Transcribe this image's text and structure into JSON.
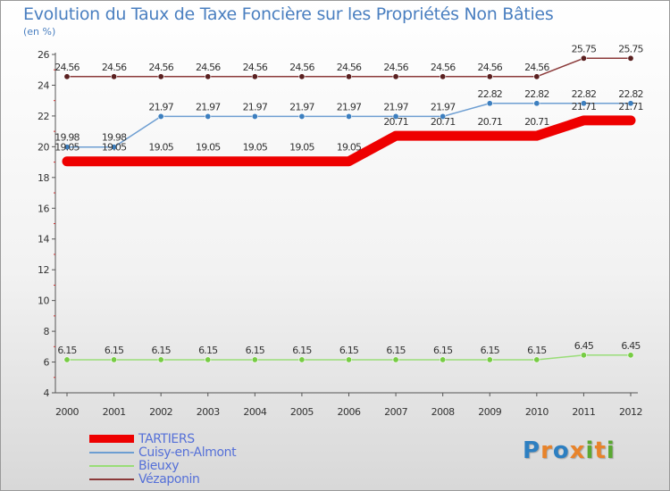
{
  "header": {
    "title": "Evolution du Taux de Taxe Foncière sur les Propriétés Non Bâties",
    "unit": "(en %)"
  },
  "logo": {
    "text": "Proxiti",
    "letters": [
      "P",
      "r",
      "o",
      "x",
      "i",
      "t",
      "i"
    ],
    "colors": [
      "#2d7fc1",
      "#e8832a",
      "#2d7fc1",
      "#e8832a",
      "#5aa832",
      "#e8832a",
      "#5aa832"
    ]
  },
  "chart_data": {
    "type": "line",
    "title": "Evolution du Taux de Taxe Foncière sur les Propriétés Non Bâties",
    "ylabel": "(en %)",
    "xlabel": "",
    "x": [
      "2000",
      "2001",
      "2002",
      "2003",
      "2004",
      "2005",
      "2006",
      "2007",
      "2008",
      "2009",
      "2010",
      "2011",
      "2012"
    ],
    "ylim": [
      4,
      26
    ],
    "yticks": [
      4,
      6,
      8,
      10,
      12,
      14,
      16,
      18,
      20,
      22,
      24,
      26
    ],
    "grid": false,
    "legend": "bottom-left",
    "series": [
      {
        "name": "TARTIERS",
        "color": "#ee0000",
        "style": "thick",
        "values": [
          19.05,
          19.05,
          19.05,
          19.05,
          19.05,
          19.05,
          19.05,
          20.71,
          20.71,
          20.71,
          20.71,
          21.71,
          21.71
        ],
        "labels": [
          "19.05",
          "19.05",
          "19.05",
          "19.05",
          "19.05",
          "19.05",
          "19.05",
          "20.71",
          "20.71",
          "20.71",
          "20.71",
          "21.71",
          "21.71"
        ]
      },
      {
        "name": "Cuisy-en-Almont",
        "color": "#6d9ed2",
        "marker": "#3d7fbf",
        "values": [
          19.98,
          19.98,
          21.97,
          21.97,
          21.97,
          21.97,
          21.97,
          21.97,
          21.97,
          22.82,
          22.82,
          22.82,
          22.82
        ],
        "labels": [
          "19.98",
          "19.98",
          "21.97",
          "21.97",
          "21.97",
          "21.97",
          "21.97",
          "21.97",
          "21.97",
          "22.82",
          "22.82",
          "22.82",
          "22.82"
        ]
      },
      {
        "name": "Bieuxy",
        "color": "#99dd77",
        "marker": "#77cc44",
        "values": [
          6.15,
          6.15,
          6.15,
          6.15,
          6.15,
          6.15,
          6.15,
          6.15,
          6.15,
          6.15,
          6.15,
          6.45,
          6.45
        ],
        "labels": [
          "6.15",
          "6.15",
          "6.15",
          "6.15",
          "6.15",
          "6.15",
          "6.15",
          "6.15",
          "6.15",
          "6.15",
          "6.15",
          "6.45",
          "6.45"
        ]
      },
      {
        "name": "Vézaponin",
        "color": "#8b3a3a",
        "marker": "#5a2020",
        "values": [
          24.56,
          24.56,
          24.56,
          24.56,
          24.56,
          24.56,
          24.56,
          24.56,
          24.56,
          24.56,
          24.56,
          25.75,
          25.75
        ],
        "labels": [
          "24.56",
          "24.56",
          "24.56",
          "24.56",
          "24.56",
          "24.56",
          "24.56",
          "24.56",
          "24.56",
          "24.56",
          "24.56",
          "25.75",
          "25.75"
        ]
      }
    ]
  }
}
